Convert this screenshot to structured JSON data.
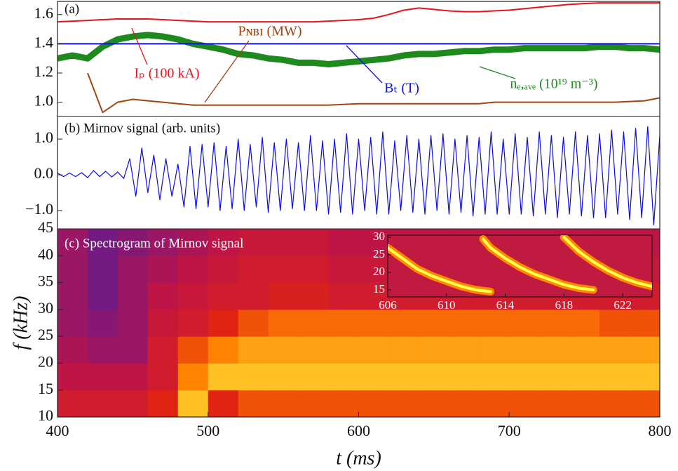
{
  "chart_data": [
    {
      "type": "line",
      "title": "(a)",
      "xlim": [
        400,
        800
      ],
      "ylim": [
        0.907,
        1.69
      ],
      "yticks": [
        {
          "value": 1.0,
          "label": "1.0"
        },
        {
          "value": 1.2,
          "label": "1.2"
        },
        {
          "value": 1.4,
          "label": "1.4"
        },
        {
          "value": 1.6,
          "label": "1.6"
        }
      ],
      "x": [
        400,
        410,
        420,
        430,
        440,
        450,
        460,
        470,
        480,
        490,
        500,
        510,
        520,
        530,
        540,
        550,
        560,
        570,
        580,
        590,
        600,
        610,
        620,
        630,
        640,
        650,
        660,
        670,
        680,
        690,
        700,
        710,
        720,
        730,
        740,
        750,
        760,
        770,
        780,
        790,
        800
      ],
      "series": [
        {
          "name": "nₑ,ₐᵥₑ (10¹⁹ m⁻³)",
          "color": "#1e8a1e",
          "values": [
            1.3,
            1.32,
            1.3,
            1.38,
            1.43,
            1.45,
            1.46,
            1.45,
            1.43,
            1.4,
            1.38,
            1.36,
            1.33,
            1.32,
            1.3,
            1.29,
            1.27,
            1.27,
            1.26,
            1.27,
            1.28,
            1.29,
            1.3,
            1.32,
            1.33,
            1.33,
            1.34,
            1.35,
            1.35,
            1.36,
            1.36,
            1.37,
            1.37,
            1.37,
            1.37,
            1.37,
            1.38,
            1.38,
            1.37,
            1.37,
            1.36
          ]
        },
        {
          "name": "Iₚ (100 kA)",
          "color": "#e8141c",
          "values": [
            1.55,
            1.555,
            1.56,
            1.565,
            1.57,
            1.57,
            1.57,
            1.565,
            1.56,
            1.555,
            1.55,
            1.55,
            1.55,
            1.55,
            1.55,
            1.55,
            1.55,
            1.55,
            1.555,
            1.56,
            1.565,
            1.575,
            1.6,
            1.63,
            1.645,
            1.635,
            1.625,
            1.62,
            1.62,
            1.625,
            1.63,
            1.64,
            1.65,
            1.66,
            1.67,
            1.675,
            1.68,
            1.68,
            1.68,
            1.68,
            1.68
          ]
        },
        {
          "name": "Pɴʙɪ (MW)",
          "color": "#a2440f",
          "values": [
            null,
            null,
            1.2,
            0.93,
            1.0,
            1.02,
            1.01,
            1.0,
            0.99,
            0.98,
            0.98,
            0.98,
            0.98,
            0.98,
            0.98,
            0.98,
            0.98,
            0.98,
            0.98,
            0.985,
            0.99,
            0.99,
            0.99,
            0.99,
            0.99,
            0.99,
            0.99,
            0.99,
            0.99,
            1.0,
            1.0,
            1.0,
            1.0,
            1.0,
            1.0,
            1.0,
            1.0,
            1.0,
            1.005,
            1.01,
            1.03
          ]
        },
        {
          "name": "Bₜ (T)",
          "color": "#1010e8",
          "values": [
            1.4,
            1.4,
            1.4,
            1.4,
            1.4,
            1.4,
            1.4,
            1.4,
            1.4,
            1.4,
            1.4,
            1.4,
            1.4,
            1.4,
            1.4,
            1.4,
            1.4,
            1.4,
            1.4,
            1.4,
            1.4,
            1.4,
            1.4,
            1.4,
            1.4,
            1.4,
            1.4,
            1.4,
            1.4,
            1.4,
            1.4,
            1.4,
            1.4,
            1.4,
            1.4,
            1.4,
            1.4,
            1.4,
            1.4,
            1.4,
            1.4
          ]
        }
      ]
    },
    {
      "type": "line",
      "title": "(b) Mirnov signal (arb. units)",
      "xlim": [
        400,
        800
      ],
      "ylim": [
        -1.51,
        1.63
      ],
      "yticks": [
        {
          "value": 1.0,
          "label": "1.0"
        },
        {
          "value": 0.0,
          "label": "0.0"
        },
        {
          "value": -1.0,
          "label": "−1.0"
        }
      ],
      "x": [
        400,
        404,
        408,
        412,
        416,
        420,
        424,
        428,
        432,
        436,
        440,
        444,
        448,
        452,
        456,
        460,
        464,
        468,
        472,
        476,
        480,
        484,
        488,
        492,
        496,
        500,
        504,
        508,
        512,
        516,
        520,
        524,
        528,
        532,
        536,
        540,
        544,
        548,
        552,
        556,
        560,
        564,
        568,
        572,
        576,
        580,
        584,
        588,
        592,
        596,
        600,
        604,
        608,
        612,
        616,
        620,
        624,
        628,
        632,
        636,
        640,
        644,
        648,
        652,
        656,
        660,
        664,
        668,
        672,
        676,
        680,
        684,
        688,
        692,
        696,
        700,
        704,
        708,
        712,
        716,
        720,
        724,
        728,
        732,
        736,
        740,
        744,
        748,
        752,
        756,
        760,
        764,
        768,
        772,
        776,
        780,
        784,
        788,
        792,
        796,
        800
      ],
      "series": [
        {
          "color": "#0a0af0",
          "values": [
            0.05,
            -0.05,
            0.05,
            -0.05,
            0.06,
            -0.08,
            0.12,
            -0.05,
            0.1,
            -0.06,
            0.08,
            -0.1,
            0.45,
            -0.6,
            0.75,
            -0.5,
            0.55,
            -0.7,
            0.45,
            -0.6,
            0.3,
            -0.9,
            0.8,
            -0.95,
            0.85,
            -0.9,
            0.9,
            -1.0,
            0.8,
            -0.95,
            1.0,
            -1.0,
            0.85,
            -0.9,
            1.05,
            -1.05,
            0.9,
            -1.0,
            1.0,
            -0.95,
            0.9,
            -1.0,
            1.1,
            -1.0,
            0.95,
            -1.1,
            1.0,
            -1.05,
            1.15,
            -1.1,
            1.0,
            -1.0,
            1.05,
            -1.1,
            1.2,
            -1.1,
            0.95,
            -1.0,
            1.1,
            -1.05,
            1.0,
            -1.1,
            1.1,
            -1.0,
            1.15,
            -1.1,
            1.0,
            -1.05,
            1.1,
            -1.15,
            1.05,
            -1.1,
            1.2,
            -1.1,
            1.0,
            -1.1,
            1.15,
            -1.1,
            1.05,
            -1.15,
            1.2,
            -1.1,
            1.1,
            -1.2,
            1.05,
            -1.1,
            1.2,
            -1.15,
            1.1,
            -1.2,
            1.15,
            -1.2,
            1.25,
            -1.1,
            1.2,
            -1.25,
            1.3,
            -1.2,
            1.35,
            -1.4,
            1.1
          ]
        }
      ]
    },
    {
      "type": "heatmap",
      "title": "(c) Spectrogram of Mirnov signal",
      "xlim": [
        400,
        800
      ],
      "ylim": [
        10,
        45
      ],
      "xlabel": "t (ms)",
      "ylabel": "f (kHz)",
      "xticks": [
        400,
        500,
        600,
        700,
        800
      ],
      "yticks": [
        10,
        15,
        20,
        25,
        30,
        35,
        40,
        45
      ],
      "x": [
        400,
        420,
        440,
        460,
        480,
        500,
        520,
        540,
        560,
        580,
        600,
        620,
        640,
        660,
        680,
        700,
        720,
        740,
        760,
        780,
        800
      ],
      "y": [
        10,
        15,
        20,
        25,
        30,
        35,
        40,
        45
      ],
      "z": [
        [
          0.5,
          0.5,
          0.5,
          0.6,
          0.9,
          0.6,
          0.7,
          0.7,
          0.7,
          0.7,
          0.7,
          0.7,
          0.7,
          0.7,
          0.7,
          0.7,
          0.7,
          0.7,
          0.7,
          0.7
        ],
        [
          0.4,
          0.4,
          0.4,
          0.5,
          0.8,
          0.9,
          0.9,
          0.9,
          0.9,
          0.9,
          0.9,
          0.9,
          0.9,
          0.9,
          0.9,
          0.9,
          0.9,
          0.9,
          0.9,
          0.9
        ],
        [
          0.35,
          0.3,
          0.3,
          0.5,
          0.7,
          0.8,
          0.85,
          0.85,
          0.85,
          0.85,
          0.85,
          0.85,
          0.85,
          0.85,
          0.85,
          0.85,
          0.85,
          0.85,
          0.85,
          0.85
        ],
        [
          0.3,
          0.25,
          0.3,
          0.45,
          0.5,
          0.6,
          0.7,
          0.75,
          0.75,
          0.75,
          0.75,
          0.75,
          0.75,
          0.75,
          0.75,
          0.75,
          0.75,
          0.75,
          0.7,
          0.7
        ],
        [
          0.3,
          0.2,
          0.3,
          0.4,
          0.45,
          0.5,
          0.5,
          0.55,
          0.55,
          0.5,
          0.5,
          0.5,
          0.5,
          0.5,
          0.5,
          0.5,
          0.5,
          0.5,
          0.5,
          0.5
        ],
        [
          0.3,
          0.2,
          0.3,
          0.35,
          0.4,
          0.45,
          0.5,
          0.5,
          0.5,
          0.45,
          0.45,
          0.45,
          0.45,
          0.45,
          0.45,
          0.45,
          0.45,
          0.45,
          0.45,
          0.45
        ],
        [
          0.3,
          0.2,
          0.25,
          0.3,
          0.35,
          0.4,
          0.45,
          0.45,
          0.45,
          0.4,
          0.4,
          0.4,
          0.4,
          0.4,
          0.4,
          0.4,
          0.4,
          0.4,
          0.4,
          0.4
        ]
      ]
    },
    {
      "type": "line",
      "xlim": [
        606,
        624
      ],
      "ylim": [
        13,
        30.6
      ],
      "xticks": [
        606,
        610,
        614,
        618,
        622
      ],
      "yticks": [
        15,
        20,
        25,
        30
      ],
      "color": "#ffff50",
      "x": [
        606,
        607,
        608,
        609,
        610,
        611,
        612,
        613,
        null,
        612.5,
        613,
        614,
        615,
        616,
        617,
        618,
        619,
        620,
        null,
        618,
        618.5,
        619,
        620,
        621,
        622,
        623,
        624
      ],
      "values": [
        27,
        24,
        21,
        19,
        17.5,
        16,
        15,
        14.5,
        null,
        29.5,
        27,
        24,
        21.5,
        19.5,
        18,
        16.5,
        15.5,
        15,
        null,
        30,
        28,
        26,
        23,
        20.5,
        18.5,
        17,
        16
      ]
    }
  ]
}
